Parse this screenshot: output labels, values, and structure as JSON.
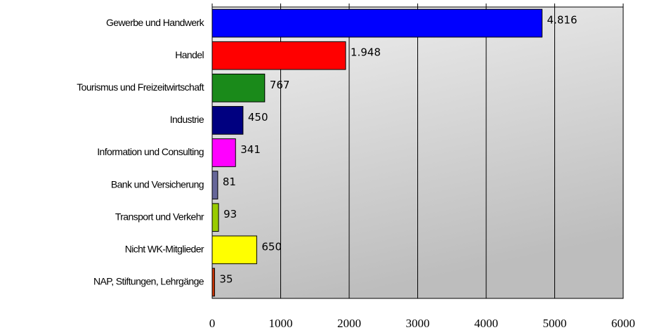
{
  "chart_data": {
    "type": "bar",
    "orientation": "horizontal",
    "categories": [
      "Gewerbe und Handwerk",
      "Handel",
      "Tourismus und Freizeitwirtschaft",
      "Industrie",
      "Information und Consulting",
      "Bank und Versicherung",
      "Transport und Verkehr",
      "Nicht WK-Mitglieder",
      "NAP, Stiftungen, Lehrgänge"
    ],
    "values": [
      4816,
      1948,
      767,
      450,
      341,
      81,
      93,
      650,
      35
    ],
    "value_labels": [
      "4.816",
      "1.948",
      "767",
      "450",
      "341",
      "81",
      "93",
      "650",
      "35"
    ],
    "colors": [
      "#0000ff",
      "#ff0000",
      "#1a8a1a",
      "#000080",
      "#ff00ff",
      "#666699",
      "#99cc00",
      "#ffff00",
      "#cc3300"
    ],
    "xlim": [
      0,
      6000
    ],
    "xticks": [
      0,
      1000,
      2000,
      3000,
      4000,
      5000,
      6000
    ],
    "grid": true
  }
}
